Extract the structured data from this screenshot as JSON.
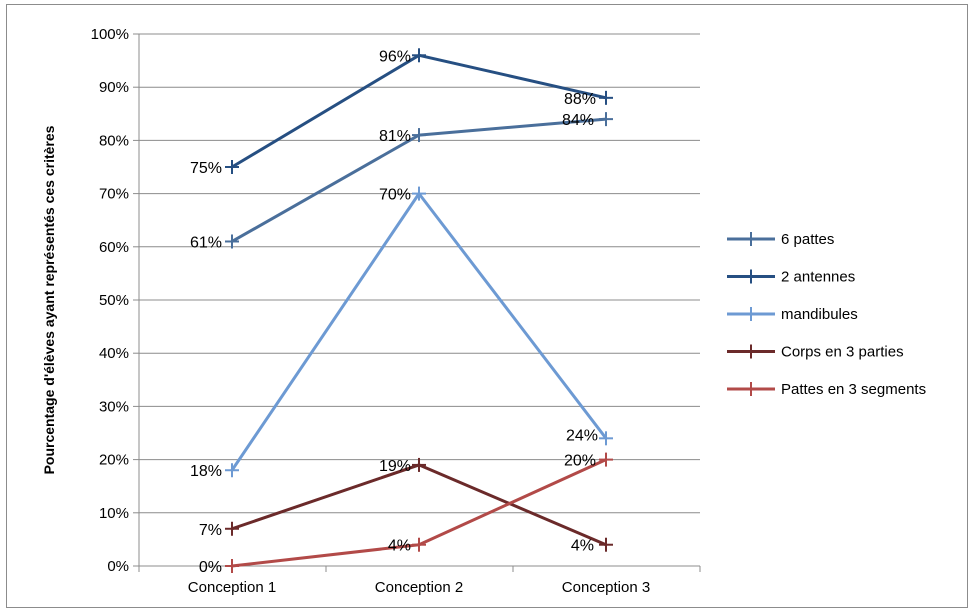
{
  "chart_data": {
    "type": "line",
    "title": "",
    "xlabel": "",
    "ylabel": "Pourcentage d'élèves ayant représentés ces critères",
    "ylim": [
      0,
      100
    ],
    "yticks": [
      "0%",
      "10%",
      "20%",
      "30%",
      "40%",
      "50%",
      "60%",
      "70%",
      "80%",
      "90%",
      "100%"
    ],
    "categories": [
      "Conception 1",
      "Conception 2",
      "Conception 3"
    ],
    "legend_position": "right",
    "grid": true,
    "series": [
      {
        "name": "6 pattes",
        "color": "#4a6f9b",
        "values": [
          61,
          81,
          84
        ],
        "labels": [
          "61%",
          "81%",
          "84%"
        ]
      },
      {
        "name": "2 antennes",
        "color": "#264f82",
        "values": [
          75,
          96,
          88
        ],
        "labels": [
          "75%",
          "96%",
          "88%"
        ]
      },
      {
        "name": "mandibules",
        "color": "#6d9ad3",
        "values": [
          18,
          70,
          24
        ],
        "labels": [
          "18%",
          "70%",
          "24%"
        ]
      },
      {
        "name": "Corps en 3 parties",
        "color": "#6b2a2a",
        "values": [
          7,
          19,
          4
        ],
        "labels": [
          "7%",
          "19%",
          "4%"
        ]
      },
      {
        "name": "Pattes en 3 segments",
        "color": "#b24a48",
        "values": [
          0,
          4,
          20
        ],
        "labels": [
          "0%",
          "4%",
          "20%"
        ]
      }
    ]
  }
}
